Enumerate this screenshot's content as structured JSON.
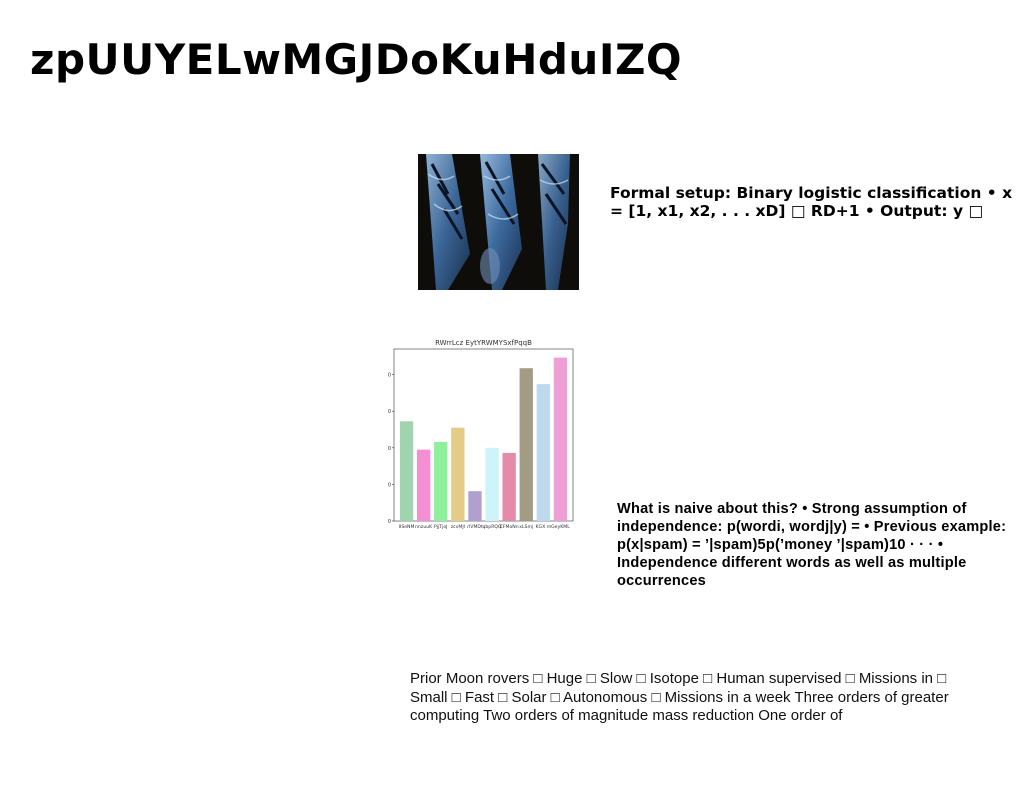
{
  "slide": {
    "title": "zpUUYELwMGJDoKuHduIZQ",
    "text_block_1": "Formal setup: Binary logistic classification • x = [1, x1, x2, . . . xD] □ RD+1 • Output: y □",
    "text_block_2": "What is naive about this? • Strong assumption of independence: p(wordi, wordj|y) = • Previous example: p(x|spam) = ’|spam)5p(’money ’|spam)10 · · · • Independence different words as well as multiple occurrences",
    "text_block_3": "Prior Moon rovers □ Huge □ Slow □ Isotope □ Human supervised □ Missions in □ Small □ Fast □ Solar □ Autonomous □ Missions in a week Three orders of greater computing Two orders of magnitude mass reduction One order of"
  },
  "chart_data": {
    "type": "bar",
    "title": "RWrrLcz EytYRWMYSxfPqqB",
    "categories": [
      "IISeNM",
      "nnzuuK",
      "PjjTjoJ",
      "zcvMJl",
      "rlVMDt",
      "qbpRQQ",
      "CFMoNn",
      "xLSmj",
      "KGX m",
      "GeyKML"
    ],
    "values": [
      545,
      390,
      432,
      510,
      163,
      400,
      372,
      835,
      748,
      893
    ],
    "colors": [
      "#9fd4ae",
      "#f58fd4",
      "#8ef09b",
      "#e3cc85",
      "#b1a0cf",
      "#cdf3fb",
      "#e68aab",
      "#a39c84",
      "#bcd9ee",
      "#eea0d6"
    ],
    "yticks": [
      0,
      200,
      400,
      600,
      800
    ],
    "ylim": [
      0,
      940
    ]
  }
}
